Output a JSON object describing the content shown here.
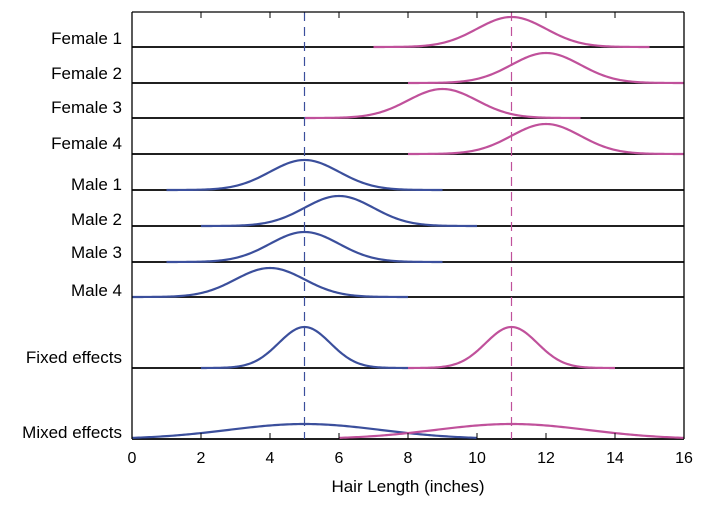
{
  "chart_data": {
    "type": "line",
    "title": "",
    "xlabel": "Hair Length (inches)",
    "ylabel": "",
    "xlim": [
      0,
      16
    ],
    "xticks": [
      0,
      2,
      4,
      6,
      8,
      10,
      12,
      14,
      16
    ],
    "grid": false,
    "colors": {
      "female": "#c0519b",
      "male": "#3b4f9c",
      "axis": "#000000"
    },
    "reference_lines": [
      {
        "name": "male-mean",
        "x": 5,
        "style": "dashed",
        "group": "male"
      },
      {
        "name": "female-mean",
        "x": 11,
        "style": "dashed",
        "group": "female"
      }
    ],
    "rows": [
      {
        "label": "Female 1",
        "curves": [
          {
            "group": "female",
            "mean": 11,
            "sd": 1.0,
            "range": [
              7,
              15
            ]
          }
        ]
      },
      {
        "label": "Female 2",
        "curves": [
          {
            "group": "female",
            "mean": 12,
            "sd": 1.0,
            "range": [
              8,
              16
            ]
          }
        ]
      },
      {
        "label": "Female 3",
        "curves": [
          {
            "group": "female",
            "mean": 9,
            "sd": 1.0,
            "range": [
              5,
              13
            ]
          }
        ]
      },
      {
        "label": "Female 4",
        "curves": [
          {
            "group": "female",
            "mean": 12,
            "sd": 1.0,
            "range": [
              8,
              16
            ]
          }
        ]
      },
      {
        "label": "Male 1",
        "curves": [
          {
            "group": "male",
            "mean": 5,
            "sd": 1.0,
            "range": [
              1,
              9
            ]
          }
        ]
      },
      {
        "label": "Male 2",
        "curves": [
          {
            "group": "male",
            "mean": 6,
            "sd": 1.0,
            "range": [
              2,
              10
            ]
          }
        ]
      },
      {
        "label": "Male 3",
        "curves": [
          {
            "group": "male",
            "mean": 5,
            "sd": 1.0,
            "range": [
              1,
              9
            ]
          }
        ]
      },
      {
        "label": "Male 4",
        "curves": [
          {
            "group": "male",
            "mean": 4,
            "sd": 1.0,
            "range": [
              0,
              8
            ]
          }
        ]
      },
      {
        "label": "Fixed effects",
        "curves": [
          {
            "group": "male",
            "mean": 5,
            "sd": 0.75,
            "range": [
              2,
              8
            ]
          },
          {
            "group": "female",
            "mean": 11,
            "sd": 0.75,
            "range": [
              8,
              14
            ]
          }
        ]
      },
      {
        "label": "Mixed effects",
        "curves": [
          {
            "group": "male",
            "mean": 5,
            "sd": 2.2,
            "range": [
              0,
              10
            ]
          },
          {
            "group": "female",
            "mean": 11,
            "sd": 2.2,
            "range": [
              6,
              16
            ]
          }
        ]
      }
    ]
  }
}
